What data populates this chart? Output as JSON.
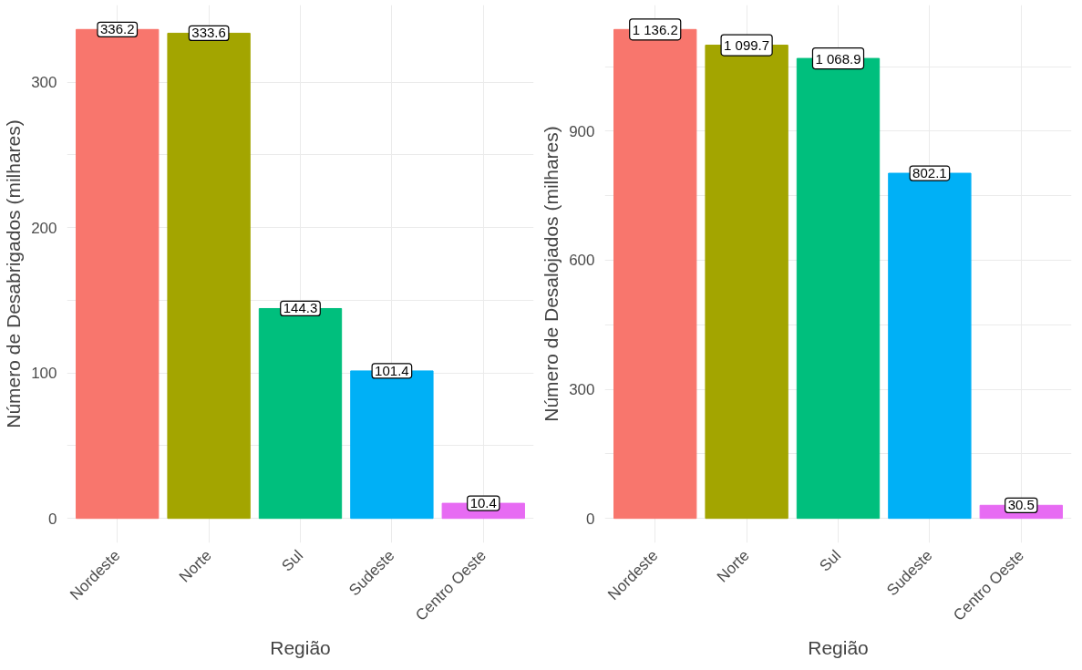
{
  "chart_data": [
    {
      "type": "bar",
      "xlabel": "Região",
      "ylabel": "Número de Desabrigados (milhares)",
      "categories": [
        "Nordeste",
        "Norte",
        "Sul",
        "Sudeste",
        "Centro Oeste"
      ],
      "values": [
        336.2,
        333.6,
        144.3,
        101.4,
        10.4
      ],
      "colors": [
        "#f8766d",
        "#a3a500",
        "#00bf7d",
        "#00b0f6",
        "#e76bf3"
      ],
      "data_labels": true,
      "ylim": [
        -16.8,
        353
      ],
      "yticks": [
        0,
        {
          "value": 50,
          "label": null
        },
        100,
        {
          "value": 150,
          "label": null
        },
        200,
        {
          "value": 250,
          "label": null
        },
        300
      ],
      "grid": true
    },
    {
      "type": "bar",
      "xlabel": "Região",
      "ylabel": "Número de Desalojados (milhares)",
      "categories": [
        "Nordeste",
        "Norte",
        "Sul",
        "Sudeste",
        "Centro Oeste"
      ],
      "values": [
        1136.2,
        1099.7,
        1068.9,
        802.1,
        30.5
      ],
      "value_labels": [
        "1 136.2",
        "1 099.7",
        "1 068.9",
        "802.1",
        "30.5"
      ],
      "colors": [
        "#f8766d",
        "#a3a500",
        "#00bf7d",
        "#00b0f6",
        "#e76bf3"
      ],
      "ylim": [
        -56.8,
        1193
      ],
      "yticks": [
        0,
        {
          "value": 150,
          "label": null
        },
        300,
        {
          "value": 450,
          "label": null
        },
        600,
        {
          "value": 750,
          "label": null
        },
        900,
        {
          "value": 1050,
          "label": null
        }
      ],
      "grid": true
    }
  ]
}
